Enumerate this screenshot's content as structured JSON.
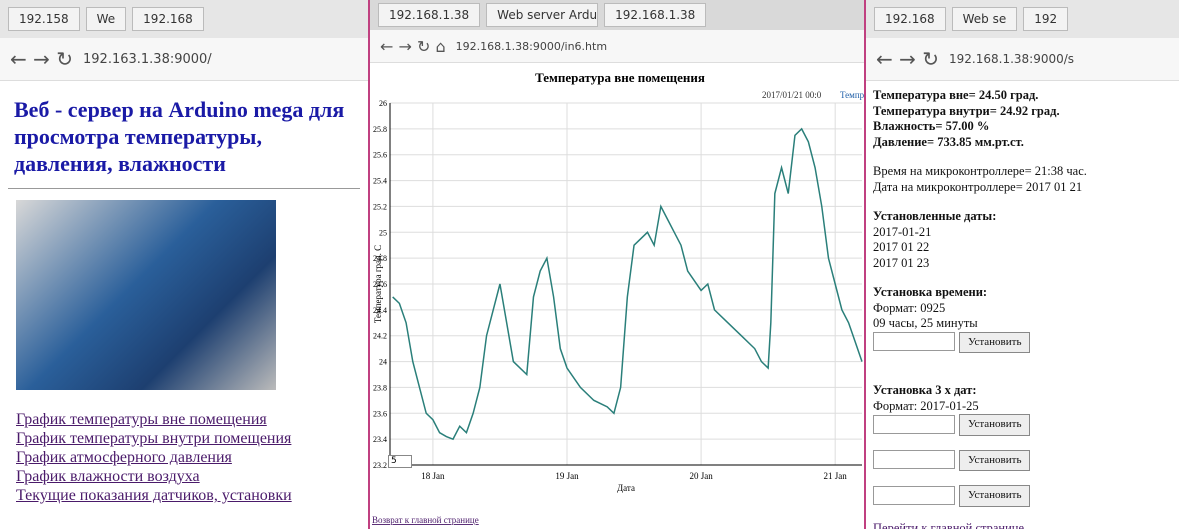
{
  "left": {
    "tabs": [
      "192.158",
      "We",
      "192.168"
    ],
    "address": "192.163.1.38:9000/",
    "heading": "Веб - сервер на Arduino mega для просмотра температуры, давления, влажности",
    "links": [
      "График температуры вне помещения",
      "График температуры внутри помещения",
      "График атмосферного давления",
      "График влажности воздуха",
      "Текущие показания датчиков, установки"
    ]
  },
  "middle": {
    "tabs": [
      "192.168.1.38",
      "Web server Arduino",
      "192.168.1.38"
    ],
    "address": "192.168.1.38:9000/in6.htm",
    "roll_value": "5",
    "footer_link": "Возврат к главной странице",
    "chart_data": {
      "type": "line",
      "title": "Температура вне помещения",
      "legend_text": "2017/01/21 00:0",
      "y_label": "Температура град. С",
      "x_label": "Дата",
      "x": [
        17.7,
        17.75,
        17.8,
        17.85,
        17.9,
        17.95,
        18.0,
        18.05,
        18.1,
        18.15,
        18.2,
        18.25,
        18.3,
        18.35,
        18.4,
        18.45,
        18.5,
        18.55,
        18.6,
        18.7,
        18.75,
        18.8,
        18.85,
        18.9,
        18.95,
        19.0,
        19.1,
        19.2,
        19.3,
        19.35,
        19.4,
        19.45,
        19.5,
        19.6,
        19.65,
        19.7,
        19.75,
        19.8,
        19.85,
        19.9,
        20.0,
        20.05,
        20.1,
        20.2,
        20.3,
        20.4,
        20.45,
        20.5,
        20.52,
        20.55,
        20.6,
        20.65,
        20.7,
        20.75,
        20.8,
        20.85,
        20.9,
        20.95,
        21.0,
        21.05,
        21.1,
        21.15,
        21.2
      ],
      "series": [
        {
          "name": "Темпр",
          "color": "#2a7f7a",
          "values": [
            24.5,
            24.45,
            24.3,
            24.0,
            23.8,
            23.6,
            23.55,
            23.45,
            23.42,
            23.4,
            23.5,
            23.45,
            23.6,
            23.8,
            24.2,
            24.4,
            24.6,
            24.3,
            24.0,
            23.9,
            24.5,
            24.7,
            24.8,
            24.5,
            24.1,
            23.95,
            23.8,
            23.7,
            23.65,
            23.6,
            23.8,
            24.5,
            24.9,
            25.0,
            24.9,
            25.2,
            25.1,
            25.0,
            24.9,
            24.7,
            24.55,
            24.6,
            24.4,
            24.3,
            24.2,
            24.1,
            24.0,
            23.95,
            24.3,
            25.3,
            25.5,
            25.3,
            25.75,
            25.8,
            25.7,
            25.5,
            25.2,
            24.8,
            24.6,
            24.4,
            24.3,
            24.15,
            24.0
          ]
        }
      ],
      "xlim": [
        17.68,
        21.2
      ],
      "xticks": [
        {
          "value": 18,
          "label": "18 Jan"
        },
        {
          "value": 19,
          "label": "19 Jan"
        },
        {
          "value": 20,
          "label": "20 Jan"
        },
        {
          "value": 21,
          "label": "21 Jan"
        }
      ],
      "ylim": [
        23.2,
        26.0
      ],
      "yticks": [
        23.2,
        23.4,
        23.6,
        23.8,
        24,
        24.2,
        24.4,
        24.6,
        24.8,
        25,
        25.2,
        25.4,
        25.6,
        25.8,
        26
      ],
      "grid": true
    }
  },
  "right": {
    "tabs": [
      "192.168",
      "Web se",
      "192"
    ],
    "address": "192.168.1.38:9000/s",
    "readings": [
      "Температура вне= 24.50 град.",
      "Температура внутри= 24.92 град.",
      "Влажность= 57.00 %",
      "Давление= 733.85 мм.рт.ст."
    ],
    "clock": [
      "Время на микроконтроллере= 21:38 час.",
      "Дата на микроконтроллере= 2017 01 21"
    ],
    "dates_title": "Установленные даты:",
    "dates": [
      "2017-01-21",
      "2017 01 22",
      "2017 01 23"
    ],
    "time_title": "Установка времени:",
    "time_format": "Формат: 0925",
    "time_hint": "09 часы, 25 минуты",
    "time_button": "Установить",
    "dates_set_title": "Установка 3 х дат:",
    "dates_format": "Формат: 2017-01-25",
    "date_buttons": [
      "Установить",
      "Установить",
      "Установить"
    ],
    "home_link": "Перейти к главной странице"
  }
}
